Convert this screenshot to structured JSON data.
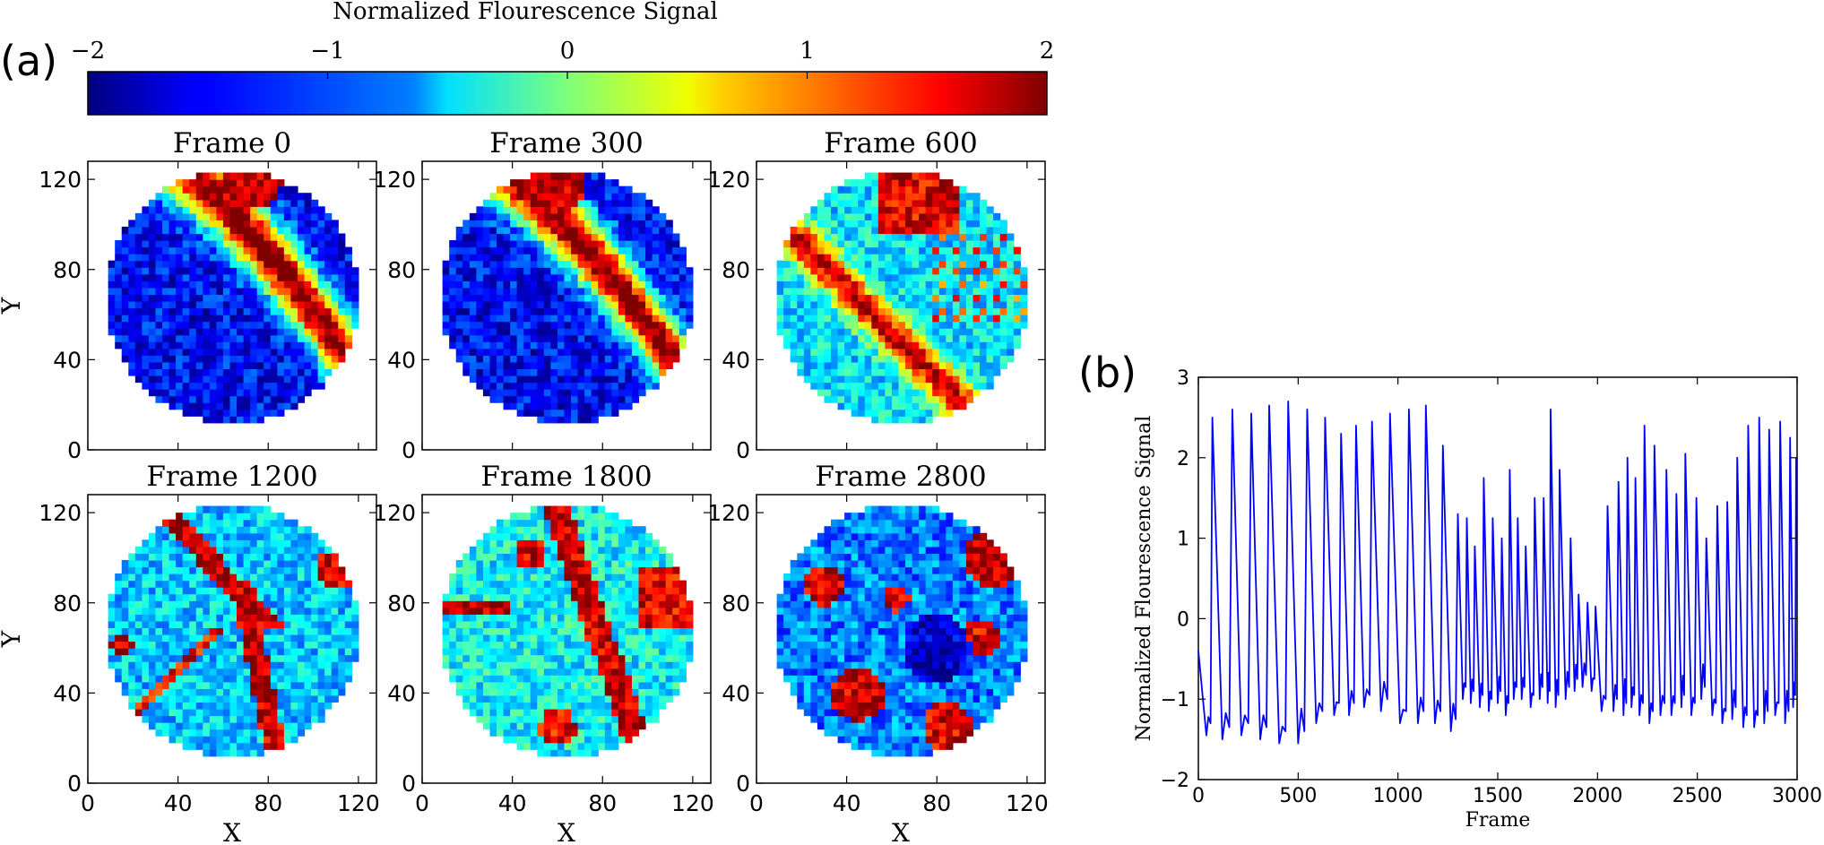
{
  "panel_labels": {
    "a": "(a)",
    "b": "(b)"
  },
  "colorbar": {
    "label": "Normalized Flourescence Signal",
    "ticks": [
      "−2",
      "−1",
      "0",
      "1",
      "2"
    ],
    "tick_values": [
      -2,
      -1,
      0,
      1,
      2
    ],
    "colormap": "jet",
    "range": [
      -2,
      2
    ]
  },
  "chart_data": [
    {
      "type": "heatmap",
      "title": "Frame 0",
      "xlabel": "",
      "ylabel": "Y",
      "xlim": [
        0,
        128
      ],
      "ylim": [
        0,
        128
      ],
      "xticks": [
        "0",
        "40",
        "80",
        "120"
      ],
      "yticks": [
        "0",
        "40",
        "80",
        "120"
      ],
      "grid": false
    },
    {
      "type": "heatmap",
      "title": "Frame 300",
      "xlabel": "",
      "ylabel": "",
      "xlim": [
        0,
        128
      ],
      "ylim": [
        0,
        128
      ],
      "xticks": [
        "0",
        "40",
        "80",
        "120"
      ],
      "yticks": [
        "0",
        "40",
        "80",
        "120"
      ],
      "grid": false
    },
    {
      "type": "heatmap",
      "title": "Frame 600",
      "xlabel": "",
      "ylabel": "",
      "xlim": [
        0,
        128
      ],
      "ylim": [
        0,
        128
      ],
      "xticks": [
        "0",
        "40",
        "80",
        "120"
      ],
      "yticks": [
        "0",
        "40",
        "80",
        "120"
      ],
      "grid": false
    },
    {
      "type": "heatmap",
      "title": "Frame 1200",
      "xlabel": "X",
      "ylabel": "Y",
      "xlim": [
        0,
        128
      ],
      "ylim": [
        0,
        128
      ],
      "xticks": [
        "0",
        "40",
        "80",
        "120"
      ],
      "yticks": [
        "0",
        "40",
        "80",
        "120"
      ],
      "grid": false
    },
    {
      "type": "heatmap",
      "title": "Frame 1800",
      "xlabel": "X",
      "ylabel": "",
      "xlim": [
        0,
        128
      ],
      "ylim": [
        0,
        128
      ],
      "xticks": [
        "0",
        "40",
        "80",
        "120"
      ],
      "yticks": [
        "0",
        "40",
        "80",
        "120"
      ],
      "grid": false
    },
    {
      "type": "heatmap",
      "title": "Frame 2800",
      "xlabel": "X",
      "ylabel": "",
      "xlim": [
        0,
        128
      ],
      "ylim": [
        0,
        128
      ],
      "xticks": [
        "0",
        "40",
        "80",
        "120"
      ],
      "yticks": [
        "0",
        "40",
        "80",
        "120"
      ],
      "grid": false
    },
    {
      "type": "line",
      "title": "",
      "xlabel": "Frame",
      "ylabel": "Normalized Flourescence Signal",
      "xlim": [
        0,
        3000
      ],
      "ylim": [
        -2,
        3
      ],
      "xticks": [
        "0",
        "500",
        "1000",
        "1500",
        "2000",
        "2500",
        "3000"
      ],
      "yticks": [
        "−2",
        "−1",
        "0",
        "1",
        "2",
        "3"
      ],
      "series": [
        {
          "color": "#0000ff",
          "peaks": [
            [
              70,
              2.5
            ],
            [
              170,
              2.6
            ],
            [
              265,
              2.55
            ],
            [
              355,
              2.65
            ],
            [
              450,
              2.7
            ],
            [
              545,
              2.6
            ],
            [
              635,
              2.5
            ],
            [
              715,
              2.3
            ],
            [
              790,
              2.4
            ],
            [
              870,
              2.45
            ],
            [
              960,
              2.55
            ],
            [
              1055,
              2.6
            ],
            [
              1140,
              2.65
            ],
            [
              1225,
              2.15
            ],
            [
              1300,
              1.3
            ],
            [
              1345,
              1.25
            ],
            [
              1385,
              0.9
            ],
            [
              1430,
              1.75
            ],
            [
              1475,
              1.25
            ],
            [
              1520,
              1.0
            ],
            [
              1560,
              1.85
            ],
            [
              1600,
              1.25
            ],
            [
              1640,
              0.9
            ],
            [
              1685,
              1.5
            ],
            [
              1730,
              1.5
            ],
            [
              1765,
              2.6
            ],
            [
              1810,
              1.85
            ],
            [
              1865,
              1.0
            ],
            [
              1905,
              0.3
            ],
            [
              1950,
              0.2
            ],
            [
              1990,
              0.15
            ],
            [
              2050,
              1.4
            ],
            [
              2105,
              1.7
            ],
            [
              2150,
              2.0
            ],
            [
              2190,
              1.75
            ],
            [
              2235,
              2.4
            ],
            [
              2285,
              2.15
            ],
            [
              2345,
              1.85
            ],
            [
              2395,
              1.55
            ],
            [
              2440,
              2.05
            ],
            [
              2495,
              1.5
            ],
            [
              2545,
              1.0
            ],
            [
              2600,
              1.4
            ],
            [
              2650,
              1.45
            ],
            [
              2700,
              2.0
            ],
            [
              2755,
              2.4
            ],
            [
              2810,
              2.5
            ],
            [
              2860,
              2.35
            ],
            [
              2915,
              2.45
            ],
            [
              2965,
              2.25
            ],
            [
              2995,
              2.0
            ]
          ],
          "troughs": [
            [
              0,
              -0.4
            ],
            [
              40,
              -1.45
            ],
            [
              120,
              -1.5
            ],
            [
              215,
              -1.45
            ],
            [
              310,
              -1.5
            ],
            [
              405,
              -1.55
            ],
            [
              500,
              -1.55
            ],
            [
              590,
              -1.3
            ],
            [
              680,
              -1.2
            ],
            [
              755,
              -1.2
            ],
            [
              830,
              -1.1
            ],
            [
              915,
              -1.15
            ],
            [
              1010,
              -1.3
            ],
            [
              1100,
              -1.3
            ],
            [
              1185,
              -1.3
            ],
            [
              1265,
              -1.4
            ],
            [
              1325,
              -1.0
            ],
            [
              1365,
              -1.05
            ],
            [
              1410,
              -1.1
            ],
            [
              1455,
              -1.15
            ],
            [
              1500,
              -1.05
            ],
            [
              1540,
              -1.2
            ],
            [
              1580,
              -1.0
            ],
            [
              1620,
              -1.0
            ],
            [
              1665,
              -1.1
            ],
            [
              1710,
              -1.0
            ],
            [
              1750,
              -1.05
            ],
            [
              1790,
              -1.1
            ],
            [
              1840,
              -1.0
            ],
            [
              1885,
              -0.9
            ],
            [
              1925,
              -0.85
            ],
            [
              1970,
              -0.9
            ],
            [
              2020,
              -1.15
            ],
            [
              2080,
              -1.15
            ],
            [
              2130,
              -1.2
            ],
            [
              2170,
              -1.1
            ],
            [
              2210,
              -1.2
            ],
            [
              2260,
              -1.3
            ],
            [
              2315,
              -1.2
            ],
            [
              2370,
              -1.2
            ],
            [
              2420,
              -1.1
            ],
            [
              2470,
              -1.2
            ],
            [
              2520,
              -1.0
            ],
            [
              2575,
              -1.2
            ],
            [
              2625,
              -1.3
            ],
            [
              2675,
              -1.25
            ],
            [
              2730,
              -1.35
            ],
            [
              2785,
              -1.35
            ],
            [
              2835,
              -1.3
            ],
            [
              2890,
              -1.2
            ],
            [
              2940,
              -1.3
            ],
            [
              2980,
              -1.1
            ]
          ]
        }
      ]
    }
  ]
}
